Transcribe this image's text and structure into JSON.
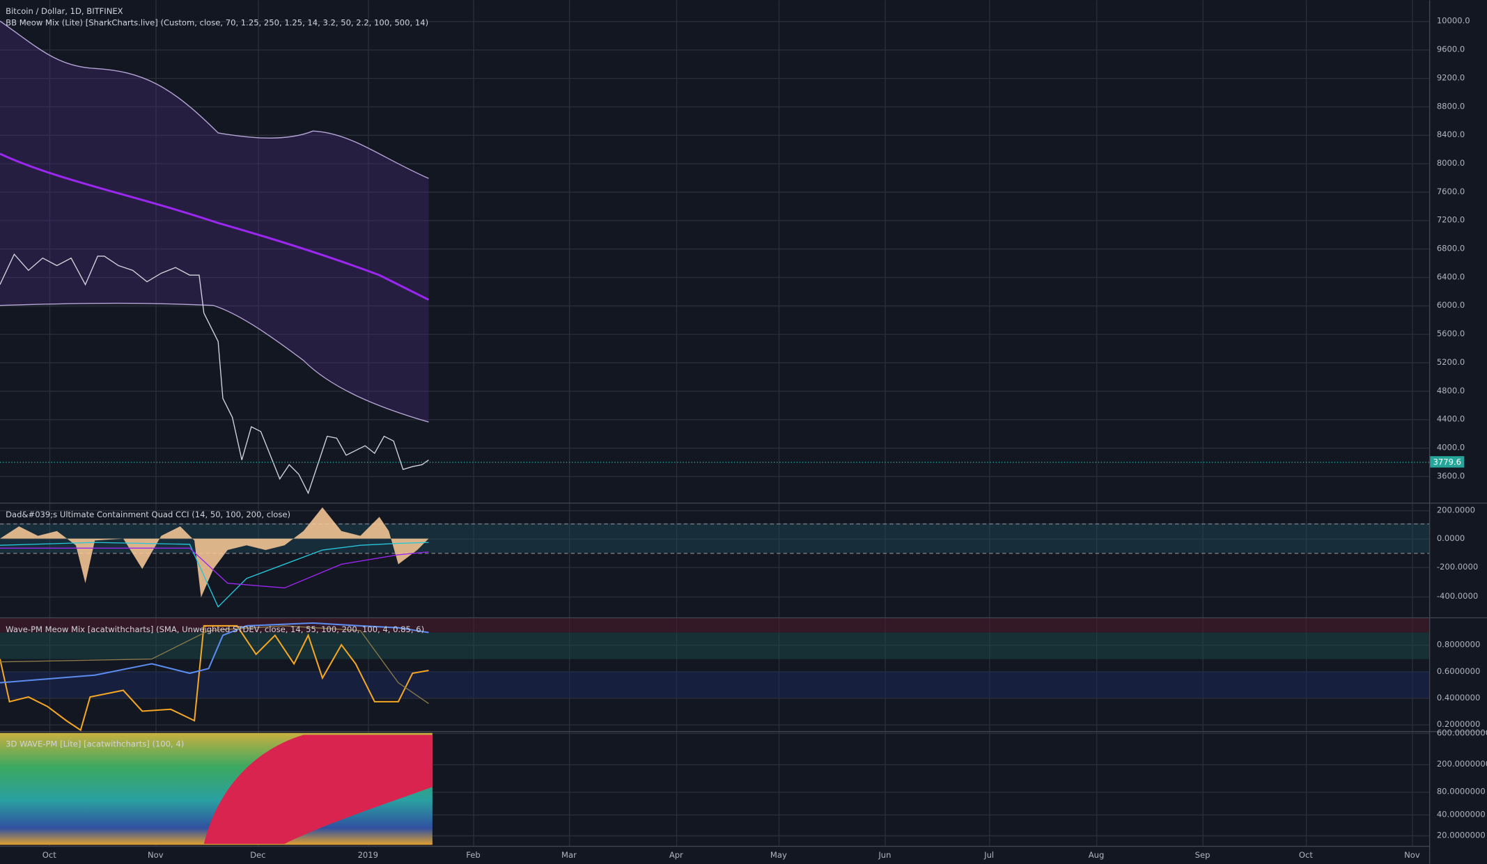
{
  "header": {
    "symbol": "Bitcoin / Dollar, 1D, BITFINEX",
    "indicator": "BB Meow Mix (Lite) [SharkCharts.live] (Custom, close, 70, 1.25, 250, 1.25, 14, 3.2, 50, 2.2, 100, 500, 14)"
  },
  "price_axis": {
    "ticks": [
      "10000.0",
      "9600.0",
      "9200.0",
      "8800.0",
      "8400.0",
      "8000.0",
      "7600.0",
      "7200.0",
      "6800.0",
      "6400.0",
      "6000.0",
      "5600.0",
      "5200.0",
      "4800.0",
      "4400.0",
      "4000.0",
      "3600.0"
    ],
    "last_price": "3779.6"
  },
  "panes": [
    {
      "title": "Dad&#039;s Ultimate Containment Quad CCI (14, 50, 100, 200, close)",
      "ticks": [
        "200.0000",
        "0.0000",
        "-200.0000",
        "-400.0000"
      ]
    },
    {
      "title": "Wave-PM Meow Mix [acatwithcharts] (SMA, Unweighted STDEV, close, 14, 55, 100, 200, 100, 4, 0.85, 6)",
      "ticks": [
        "0.8000000",
        "0.6000000",
        "0.4000000",
        "0.2000000"
      ]
    },
    {
      "title": "3D WAVE-PM [Lite] [acatwithcharts] (100, 4)",
      "ticks": [
        "600.0000000",
        "200.0000000",
        "80.0000000",
        "40.0000000",
        "20.0000000"
      ]
    }
  ],
  "time_axis": [
    "Oct",
    "Nov",
    "Dec",
    "2019",
    "Feb",
    "Mar",
    "Apr",
    "May",
    "Jun",
    "Jul",
    "Aug",
    "Sep",
    "Oct",
    "Nov"
  ]
}
